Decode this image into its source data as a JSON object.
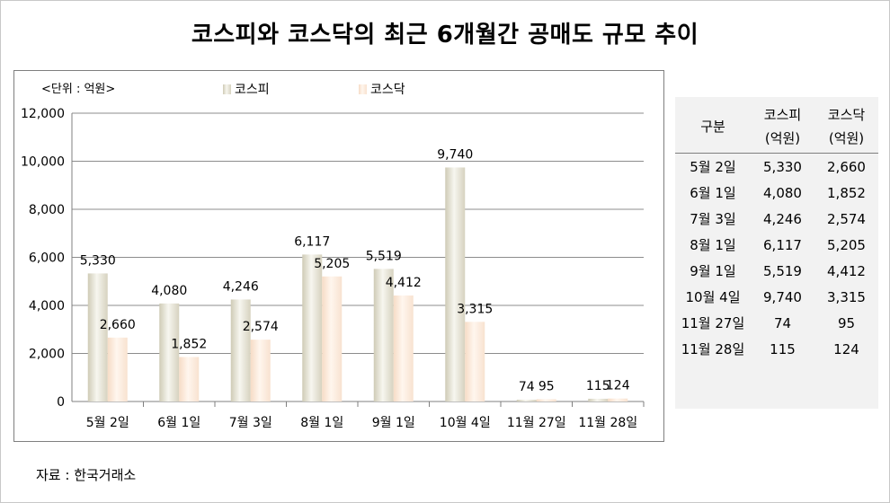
{
  "title": "코스피와 코스닥의 최근 6개월간 공매도 규모 추이",
  "source": "자료 : 한국거래소",
  "chart_data": {
    "type": "bar",
    "unit_label": "<단위 : 억원>",
    "categories": [
      "5월 2일",
      "6월 1일",
      "7월 3일",
      "8월 1일",
      "9월 1일",
      "10월 4일",
      "11월 27일",
      "11월 28일"
    ],
    "series": [
      {
        "name": "코스피",
        "values": [
          5330,
          4080,
          4246,
          6117,
          5519,
          9740,
          74,
          115
        ],
        "labels": [
          "5,330",
          "4,080",
          "4,246",
          "6,117",
          "5,519",
          "9,740",
          "74",
          "115"
        ],
        "color": "#e8e6d8"
      },
      {
        "name": "코스닥",
        "values": [
          2660,
          1852,
          2574,
          5205,
          4412,
          3315,
          95,
          124
        ],
        "labels": [
          "2,660",
          "1,852",
          "2,574",
          "5,205",
          "4,412",
          "3,315",
          "95",
          "124"
        ],
        "color": "#fbeadc"
      }
    ],
    "ylim": [
      0,
      12000
    ],
    "yticks": [
      "0",
      "2,000",
      "4,000",
      "6,000",
      "8,000",
      "10,000",
      "12,000"
    ],
    "grid": true,
    "legend_position": "top"
  },
  "table": {
    "header": {
      "col0": "구분",
      "col1_line1": "코스피",
      "col1_line2": "(억원)",
      "col2_line1": "코스닥",
      "col2_line2": "(억원)"
    },
    "rows": [
      {
        "date": "5월  2일",
        "kospi": "5,330",
        "kosdaq": "2,660"
      },
      {
        "date": "6월  1일",
        "kospi": "4,080",
        "kosdaq": "1,852"
      },
      {
        "date": "7월  3일",
        "kospi": "4,246",
        "kosdaq": "2,574"
      },
      {
        "date": "8월  1일",
        "kospi": "6,117",
        "kosdaq": "5,205"
      },
      {
        "date": "9월  1일",
        "kospi": "5,519",
        "kosdaq": "4,412"
      },
      {
        "date": "10월  4일",
        "kospi": "9,740",
        "kosdaq": "3,315"
      },
      {
        "date": "11월  27일",
        "kospi": "74",
        "kosdaq": "95"
      },
      {
        "date": "11월  28일",
        "kospi": "115",
        "kosdaq": "124"
      }
    ]
  }
}
